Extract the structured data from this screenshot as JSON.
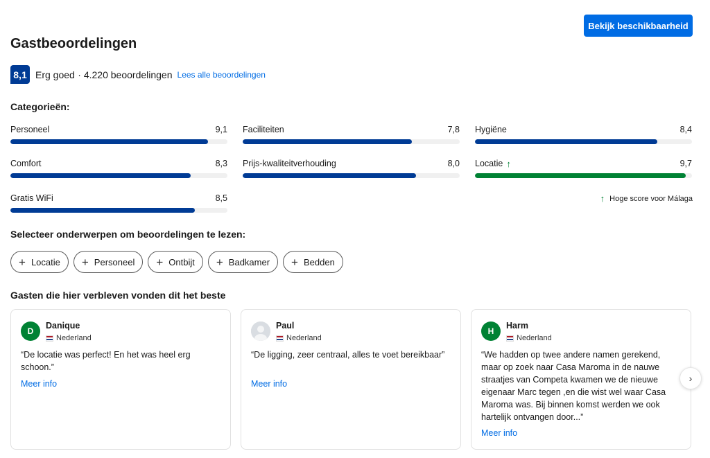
{
  "header": {
    "availability_button": "Bekijk beschikbaarheid",
    "title": "Gastbeoordelingen"
  },
  "score": {
    "value": "8,1",
    "label": "Erg goed",
    "count": "· 4.220 beoordelingen",
    "read_all": "Lees alle beoordelingen"
  },
  "categories": {
    "heading": "Categorieën:",
    "items": [
      {
        "name": "Personeel",
        "score": "9,1",
        "fraction": 0.91
      },
      {
        "name": "Faciliteiten",
        "score": "7,8",
        "fraction": 0.78
      },
      {
        "name": "Hygiëne",
        "score": "8,4",
        "fraction": 0.84
      },
      {
        "name": "Comfort",
        "score": "8,3",
        "fraction": 0.83
      },
      {
        "name": "Prijs-kwaliteitverhouding",
        "score": "8,0",
        "fraction": 0.8
      },
      {
        "name": "Locatie",
        "score": "9,7",
        "fraction": 0.97
      },
      {
        "name": "Gratis WiFi",
        "score": "8,5",
        "fraction": 0.85
      }
    ],
    "high_score_note": "Hoge score voor Málaga",
    "accent_color": "#003b95",
    "high_color": "#008234"
  },
  "topics": {
    "heading": "Selecteer onderwerpen om beoordelingen te lezen:",
    "chips": [
      "Locatie",
      "Personeel",
      "Ontbijt",
      "Badkamer",
      "Bedden"
    ]
  },
  "reviews": {
    "heading": "Gasten die hier verbleven vonden dit het beste",
    "items": [
      {
        "initial": "D",
        "name": "Danique",
        "country": "Nederland",
        "text": "“De locatie was perfect! En het was heel erg schoon.”",
        "more": "Meer info"
      },
      {
        "initial": "",
        "name": "Paul",
        "country": "Nederland",
        "text": "“De ligging, zeer centraal, alles te voet bereikbaar”",
        "more": "Meer info"
      },
      {
        "initial": "H",
        "name": "Harm",
        "country": "Nederland",
        "text": "“We hadden op twee andere namen gerekend, maar op zoek naar Casa Maroma in de nauwe straatjes van Competa kwamen we de nieuwe eigenaar Marc tegen ,en die wist wel waar Casa Maroma was. Bij binnen komst werden we ook hartelijk ontvangen door...”",
        "more": "Meer info"
      }
    ]
  }
}
